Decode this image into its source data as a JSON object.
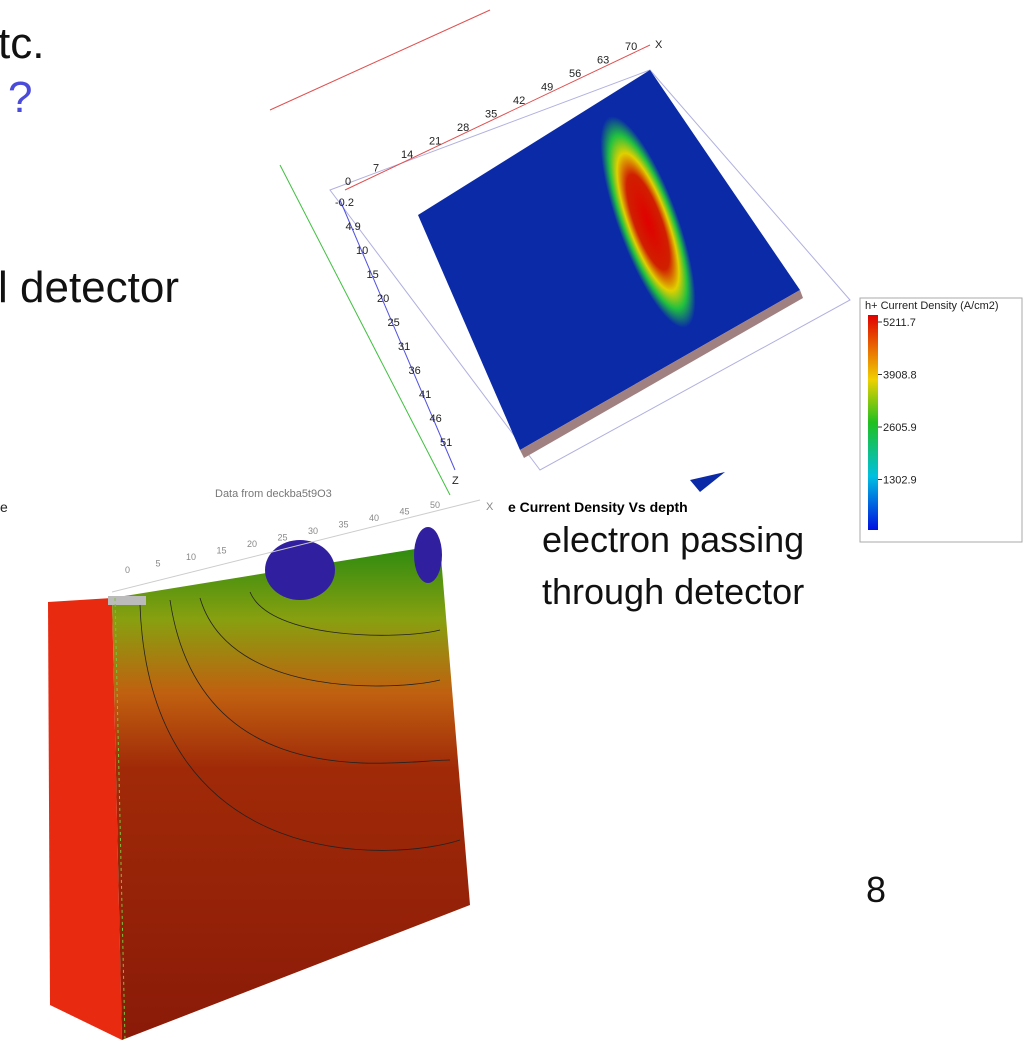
{
  "slide": {
    "text_fragments": [
      "tc.",
      "?",
      "l detector"
    ],
    "caption": [
      "electron passing",
      "through detector"
    ],
    "page_number": "8"
  },
  "figure_top": {
    "colorbar_title": "h+ Current Density (A/cm2)",
    "colorbar_labels": [
      "5211.7",
      "3908.8",
      "2605.9",
      "1302.9"
    ],
    "x_axis_label": "X",
    "x_ticks": [
      "0",
      "7",
      "14",
      "21",
      "28",
      "35",
      "42",
      "49",
      "56",
      "63",
      "70"
    ],
    "z_axis_label": "Z",
    "z_ticks": [
      "-0.2",
      "4.9",
      "10",
      "15",
      "20",
      "25",
      "31",
      "36",
      "41",
      "46",
      "51"
    ]
  },
  "figure_bottom": {
    "title": "e Current Density Vs depth",
    "source": "Data from deckba5t9O3",
    "left_fragment": "e",
    "x_axis_label": "X",
    "x_ticks": [
      "0",
      "5",
      "10",
      "15",
      "20",
      "25",
      "30",
      "35",
      "40",
      "45",
      "50"
    ]
  }
}
